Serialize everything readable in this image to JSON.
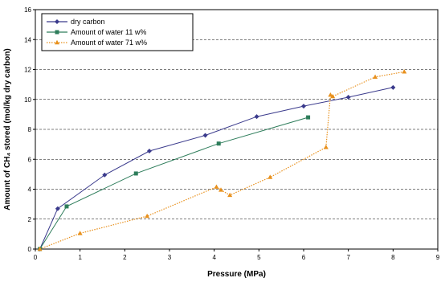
{
  "chart_data": {
    "type": "line",
    "xlabel": "Pressure (MPa)",
    "ylabel": "Amount of CH₄ stored (mol/kg dry carbon)",
    "xlim": [
      0,
      9
    ],
    "ylim": [
      0,
      16
    ],
    "x_ticks": [
      "0",
      "1",
      "2",
      "3",
      "4",
      "5",
      "6",
      "7",
      "8",
      "9"
    ],
    "y_ticks": [
      "0",
      "2",
      "4",
      "6",
      "8",
      "10",
      "12",
      "14",
      "16"
    ],
    "grid": "horizontal dashed",
    "legend_position": "top-left",
    "series": [
      {
        "name": "dry carbon",
        "color": "#3a3a8c",
        "marker": "diamond",
        "line_style": "solid",
        "x": [
          0.1,
          0.5,
          1.55,
          2.55,
          3.8,
          4.95,
          6.0,
          7.0,
          8.0
        ],
        "y": [
          0.0,
          2.7,
          4.95,
          6.55,
          7.6,
          8.85,
          9.55,
          10.15,
          10.8
        ]
      },
      {
        "name": "Amount of water 11 w%",
        "color": "#2e7d5b",
        "marker": "square",
        "line_style": "solid",
        "x": [
          0.1,
          0.7,
          2.25,
          4.1,
          6.1
        ],
        "y": [
          0.0,
          2.85,
          5.05,
          7.05,
          8.8
        ]
      },
      {
        "name": "Amount of water 71 w%",
        "color": "#e8901c",
        "marker": "triangle",
        "line_style": "dotted",
        "x": [
          0.1,
          1.0,
          2.5,
          4.05,
          4.15,
          4.35,
          5.25,
          6.5,
          6.6,
          6.65,
          7.6,
          8.25
        ],
        "y": [
          0.0,
          1.05,
          2.2,
          4.15,
          3.95,
          3.6,
          4.8,
          6.8,
          10.3,
          10.2,
          11.5,
          11.85
        ]
      }
    ]
  }
}
